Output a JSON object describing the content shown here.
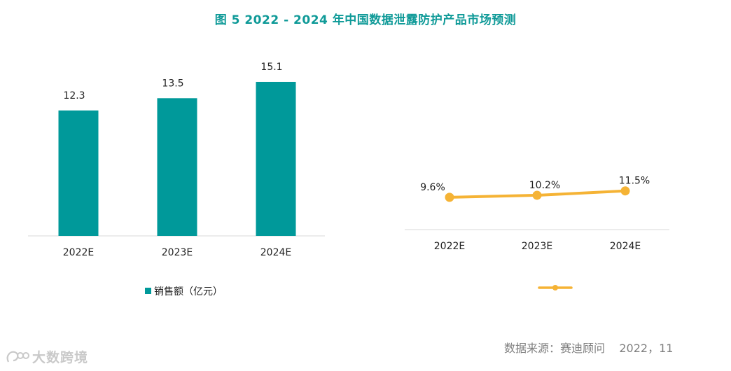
{
  "page": {
    "title": "图 5   2022 - 2024 年中国数据泄露防护产品市场预测",
    "source": "数据来源：赛迪顾问    2022，11",
    "watermark": "大数跨境"
  },
  "colors": {
    "bar": "#00999a",
    "line": "#f5b335",
    "axis": "#d9d9d9",
    "title": "#0f9a98"
  },
  "chart_data": [
    {
      "type": "bar",
      "categories": [
        "2022E",
        "2023E",
        "2024E"
      ],
      "values": [
        12.3,
        13.5,
        15.1
      ],
      "value_labels": [
        "12.3",
        "13.5",
        "15.1"
      ],
      "legend": [
        "销售额（亿元）"
      ],
      "ylim": [
        0,
        17.5
      ],
      "grid": false,
      "legend_position": "bottom-left"
    },
    {
      "type": "line",
      "categories": [
        "2022E",
        "2023E",
        "2024E"
      ],
      "values": [
        9.6,
        10.2,
        11.5
      ],
      "value_labels": [
        "9.6%",
        "10.2%",
        "11.5%"
      ],
      "legend": [
        ""
      ],
      "ylim": [
        0,
        52
      ],
      "grid": false,
      "legend_position": "bottom-center"
    }
  ]
}
